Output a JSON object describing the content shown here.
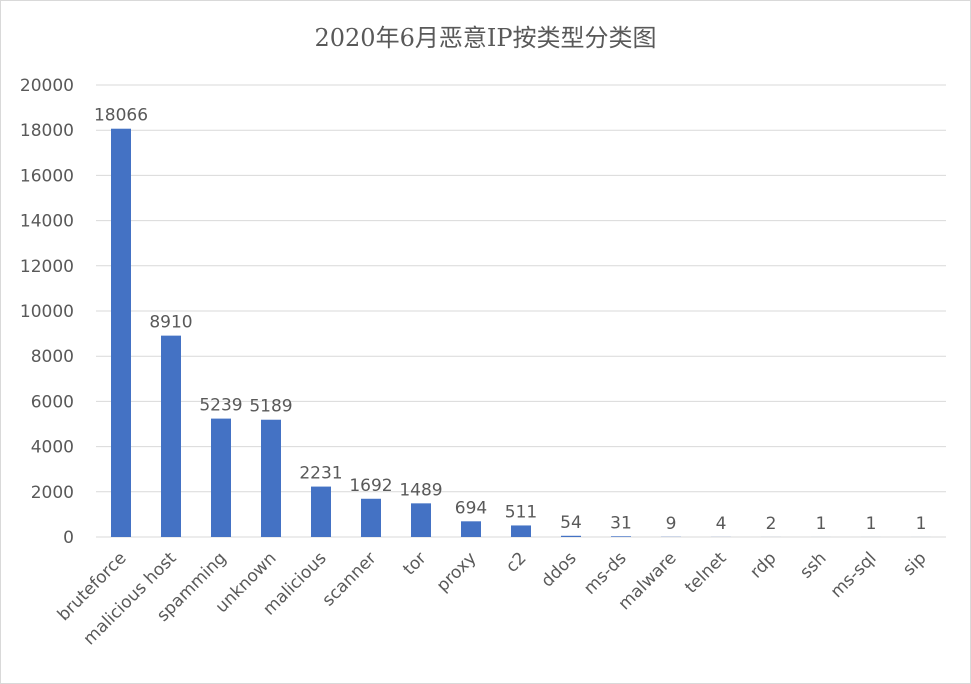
{
  "chart_data": {
    "type": "bar",
    "title": "2020年6月恶意IP按类型分类图",
    "xlabel": "",
    "ylabel": "",
    "ylim": [
      0,
      20000
    ],
    "yticks": [
      0,
      2000,
      4000,
      6000,
      8000,
      10000,
      12000,
      14000,
      16000,
      18000,
      20000
    ],
    "grid": true,
    "legend": "none",
    "bar_color": "#4472c4",
    "gridline_color": "#d9d9d9",
    "text_color": "#595959",
    "categories": [
      "bruteforce",
      "malicious host",
      "spamming",
      "unknown",
      "malicious",
      "scanner",
      "tor",
      "proxy",
      "c2",
      "ddos",
      "ms-ds",
      "malware",
      "telnet",
      "rdp",
      "ssh",
      "ms-sql",
      "sip"
    ],
    "values": [
      18066,
      8910,
      5239,
      5189,
      2231,
      1692,
      1489,
      694,
      511,
      54,
      31,
      9,
      4,
      2,
      1,
      1,
      1
    ],
    "data_labels": [
      "18066",
      "8910",
      "5239",
      "5189",
      "2231",
      "1692",
      "1489",
      "694",
      "511",
      "54",
      "31",
      "9",
      "4",
      "2",
      "1",
      "1",
      "1"
    ]
  }
}
